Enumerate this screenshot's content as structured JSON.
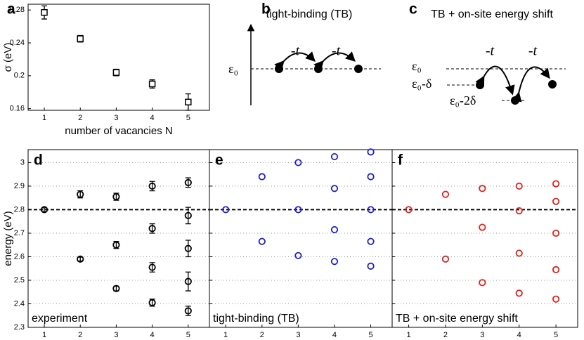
{
  "chart_data": [
    {
      "type": "scatter",
      "label": "a",
      "ylabel": "σ (eV)",
      "xlabel": "number of vacancies N",
      "marker": "square",
      "color": "#000000",
      "xlim": [
        0.55,
        5.59
      ],
      "ylim": [
        0.158,
        0.287
      ],
      "xticks": [
        1,
        2,
        3,
        4,
        5
      ],
      "yticks": [
        0.16,
        0.2,
        0.24,
        0.28
      ],
      "grid": false,
      "show_ytick_labels": true,
      "x": [
        1,
        2,
        3,
        4,
        5
      ],
      "values": [
        0.277,
        0.245,
        0.204,
        0.19,
        0.168
      ],
      "errors": [
        0.008,
        0.004,
        0.004,
        0.005,
        0.01
      ]
    },
    {
      "type": "scatter",
      "label": "d",
      "ylabel": "energy (eV)",
      "xlabel": "number of vacancies N",
      "marker": "circle",
      "color": "#000000",
      "annotation": "experiment",
      "hline": 2.8,
      "xlim": [
        0.55,
        5.59
      ],
      "ylim": [
        2.3,
        3.055
      ],
      "xticks": [
        1,
        2,
        3,
        4,
        5
      ],
      "yticks": [
        2.3,
        2.4,
        2.5,
        2.6,
        2.7,
        2.8,
        2.9,
        3
      ],
      "grid": true,
      "show_ytick_labels": true,
      "x": [
        1,
        2,
        2,
        3,
        3,
        3,
        4,
        4,
        4,
        4,
        5,
        5,
        5,
        5,
        5
      ],
      "values": [
        2.8,
        2.865,
        2.59,
        2.855,
        2.65,
        2.465,
        2.9,
        2.72,
        2.555,
        2.405,
        2.915,
        2.775,
        2.635,
        2.495,
        2.37
      ],
      "errors": [
        0.008,
        0.015,
        0.008,
        0.015,
        0.015,
        0.01,
        0.02,
        0.02,
        0.02,
        0.015,
        0.02,
        0.035,
        0.035,
        0.04,
        0.02
      ]
    },
    {
      "type": "scatter",
      "label": "e",
      "xlabel": "number of vacancies N",
      "marker": "circle",
      "color": "#1f1fd6",
      "annotation": "tight-binding (TB)",
      "hline": 2.8,
      "xlim": [
        0.55,
        5.59
      ],
      "ylim": [
        2.3,
        3.055
      ],
      "xticks": [
        1,
        2,
        3,
        4,
        5
      ],
      "yticks": [
        2.3,
        2.4,
        2.5,
        2.6,
        2.7,
        2.8,
        2.9,
        3
      ],
      "grid": true,
      "show_ytick_labels": false,
      "x": [
        1,
        2,
        2,
        3,
        3,
        3,
        4,
        4,
        4,
        4,
        5,
        5,
        5,
        5,
        5
      ],
      "values": [
        2.8,
        2.94,
        2.665,
        3.0,
        2.8,
        2.605,
        3.025,
        2.89,
        2.715,
        2.58,
        3.045,
        2.94,
        2.8,
        2.665,
        2.56
      ]
    },
    {
      "type": "scatter",
      "label": "f",
      "xlabel": "number of vacancies N",
      "marker": "circle",
      "color": "#e0201b",
      "annotation": "TB + on-site energy shift",
      "hline": 2.8,
      "xlim": [
        0.55,
        5.59
      ],
      "ylim": [
        2.3,
        3.055
      ],
      "xticks": [
        1,
        2,
        3,
        4,
        5
      ],
      "yticks": [
        2.3,
        2.4,
        2.5,
        2.6,
        2.7,
        2.8,
        2.9,
        3
      ],
      "grid": true,
      "show_ytick_labels": false,
      "x": [
        1,
        2,
        2,
        3,
        3,
        3,
        4,
        4,
        4,
        4,
        5,
        5,
        5,
        5,
        5
      ],
      "values": [
        2.8,
        2.865,
        2.59,
        2.89,
        2.725,
        2.49,
        2.9,
        2.795,
        2.615,
        2.445,
        2.91,
        2.835,
        2.7,
        2.545,
        2.42
      ]
    }
  ],
  "diagrams": {
    "b": {
      "label": "b",
      "title": "tight-binding (TB)",
      "hop1": "-t",
      "hop2": "-t",
      "level": "ε₀"
    },
    "c": {
      "label": "c",
      "title": "TB + on-site energy shift",
      "hop1": "-t",
      "hop2": "-t",
      "level0": "ε₀",
      "level1": "ε₀-δ",
      "level2": "ε₀-2δ"
    }
  }
}
